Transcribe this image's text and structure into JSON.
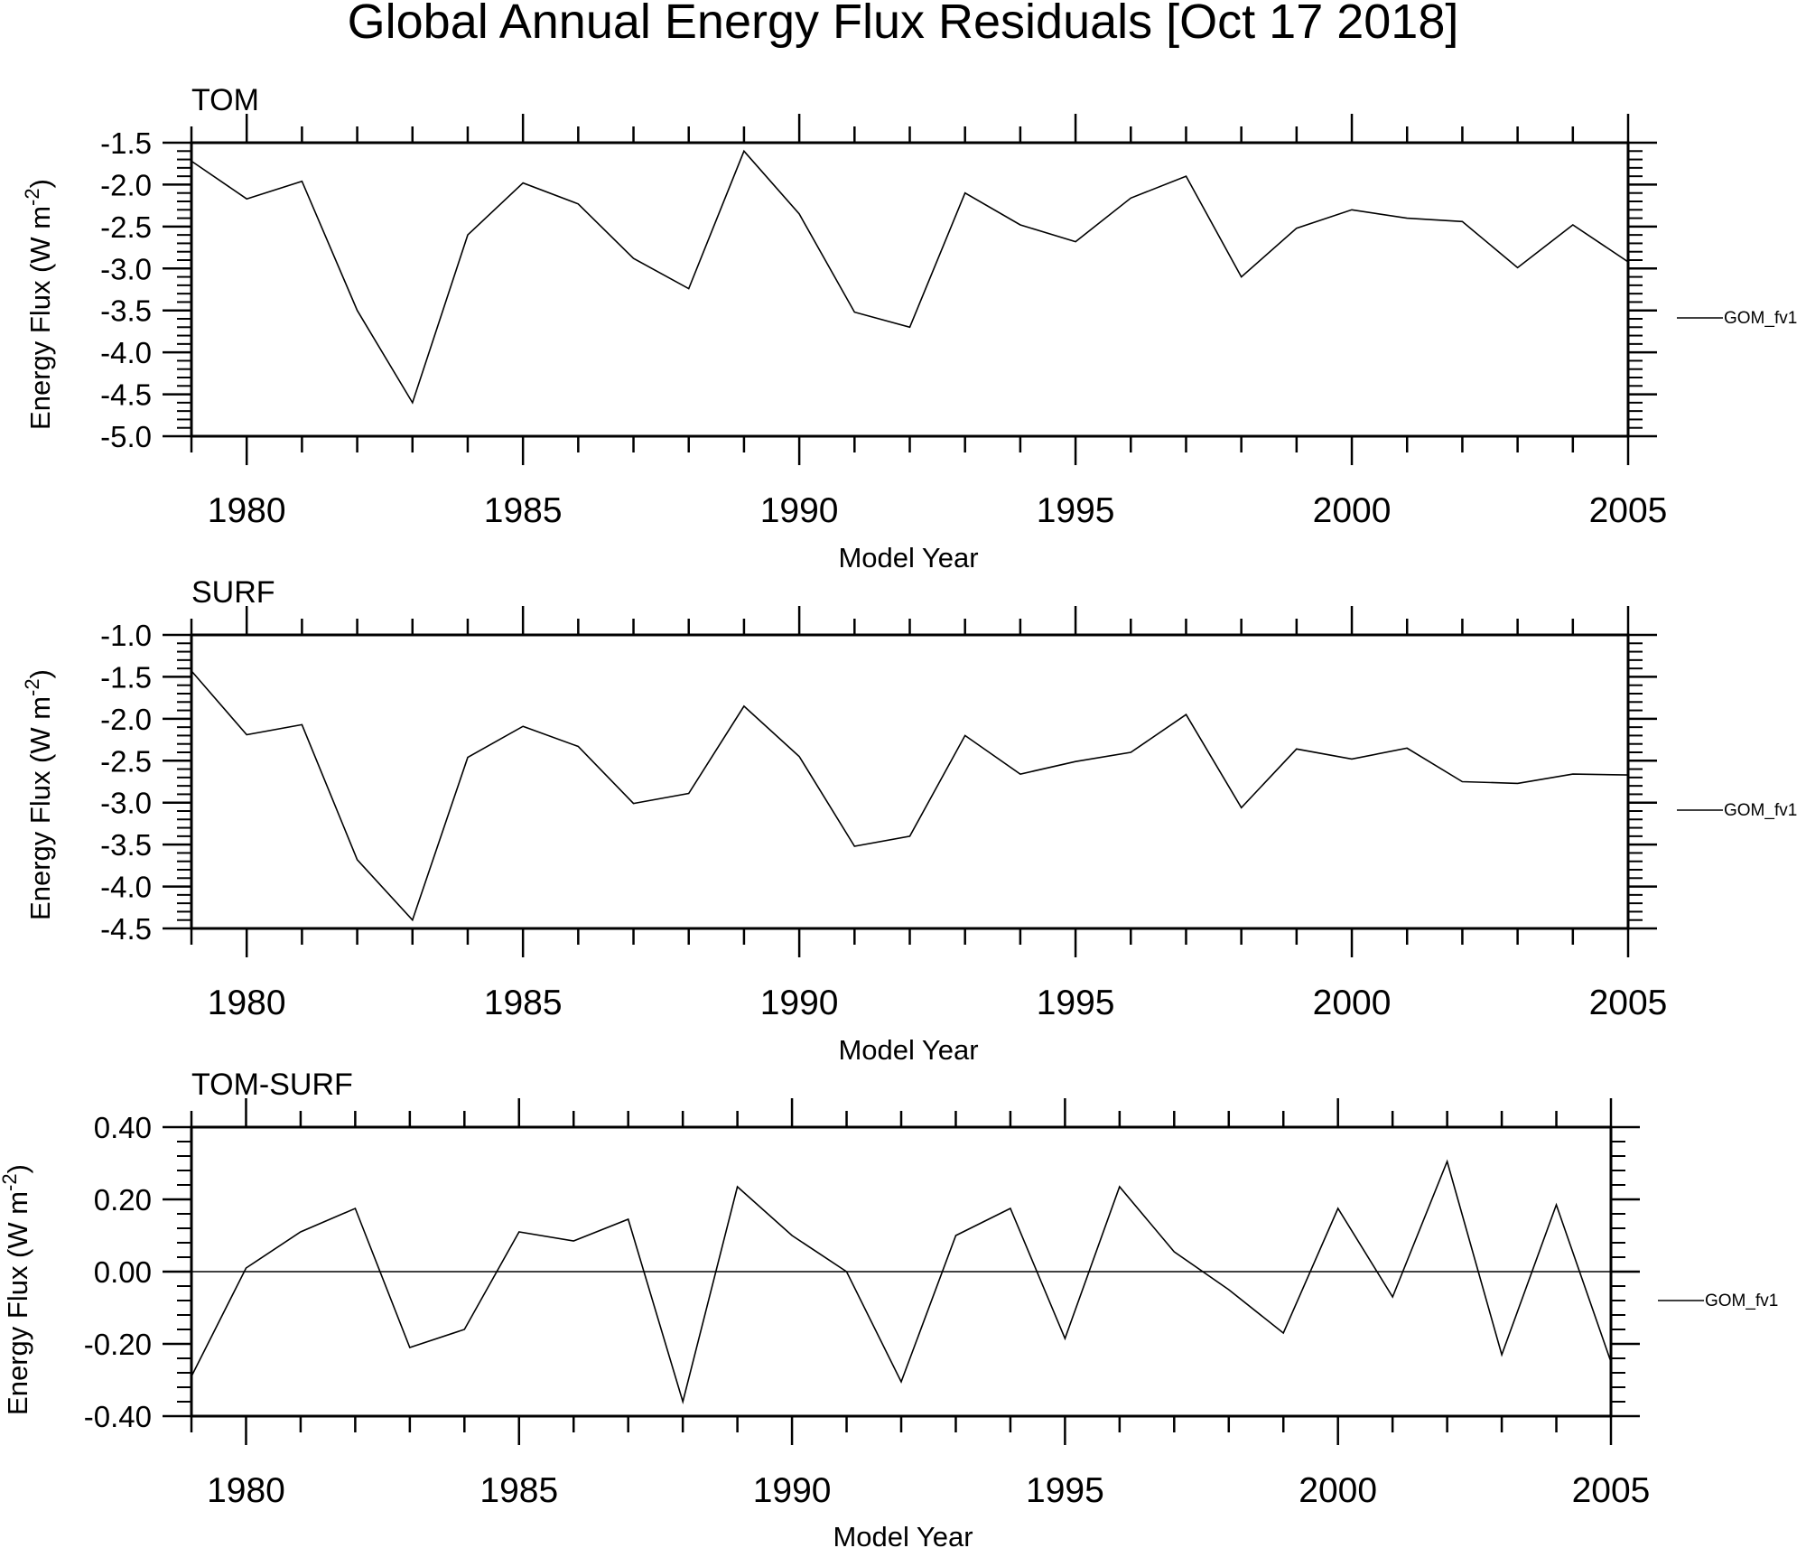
{
  "title": "Global Annual Energy Flux Residuals [Oct 17 2018]",
  "colors": {
    "line": "#000000",
    "background": "#ffffff"
  },
  "chart_data": [
    {
      "type": "line",
      "panel": "TOM",
      "xlabel": "Model Year",
      "ylabel": "Energy Flux (W m-2)",
      "ylabel_main": "Energy Flux (W m",
      "ylabel_sup": "-2",
      "ylabel_close": ")",
      "xlim": [
        1979,
        2005
      ],
      "ylim": [
        -5.0,
        -1.5
      ],
      "yticks": [
        -5.0,
        -4.5,
        -4.0,
        -3.5,
        -3.0,
        -2.5,
        -2.0,
        -1.5
      ],
      "ytick_labels": [
        "-5.0",
        "-4.5",
        "-4.0",
        "-3.5",
        "-3.0",
        "-2.5",
        "-2.0",
        "-1.5"
      ],
      "xticks": [
        1980,
        1985,
        1990,
        1995,
        2000,
        2005
      ],
      "xtick_labels": [
        "1980",
        "1985",
        "1990",
        "1995",
        "2000",
        "2005"
      ],
      "legend": "GOM_fv1",
      "zero_line": false,
      "series": [
        {
          "name": "GOM_fv1",
          "x": [
            1979,
            1980,
            1981,
            1982,
            1983,
            1984,
            1985,
            1986,
            1987,
            1988,
            1989,
            1990,
            1991,
            1992,
            1993,
            1994,
            1995,
            1996,
            1997,
            1998,
            1999,
            2000,
            2001,
            2002,
            2003,
            2004,
            2005
          ],
          "values": [
            -1.72,
            -2.17,
            -1.96,
            -3.5,
            -4.6,
            -2.6,
            -1.98,
            -2.23,
            -2.88,
            -3.24,
            -1.6,
            -2.35,
            -3.52,
            -3.7,
            -2.1,
            -2.48,
            -2.68,
            -2.16,
            -1.9,
            -3.1,
            -2.52,
            -2.3,
            -2.4,
            -2.44,
            -2.99,
            -2.48,
            -2.92
          ]
        }
      ]
    },
    {
      "type": "line",
      "panel": "SURF",
      "xlabel": "Model Year",
      "ylabel": "Energy Flux (W m-2)",
      "ylabel_main": "Energy Flux (W m",
      "ylabel_sup": "-2",
      "ylabel_close": ")",
      "xlim": [
        1979,
        2005
      ],
      "ylim": [
        -4.5,
        -1.0
      ],
      "yticks": [
        -4.5,
        -4.0,
        -3.5,
        -3.0,
        -2.5,
        -2.0,
        -1.5,
        -1.0
      ],
      "ytick_labels": [
        "-4.5",
        "-4.0",
        "-3.5",
        "-3.0",
        "-2.5",
        "-2.0",
        "-1.5",
        "-1.0"
      ],
      "xticks": [
        1980,
        1985,
        1990,
        1995,
        2000,
        2005
      ],
      "xtick_labels": [
        "1980",
        "1985",
        "1990",
        "1995",
        "2000",
        "2005"
      ],
      "legend": "GOM_fv1",
      "zero_line": false,
      "series": [
        {
          "name": "GOM_fv1",
          "x": [
            1979,
            1980,
            1981,
            1982,
            1983,
            1984,
            1985,
            1986,
            1987,
            1988,
            1989,
            1990,
            1991,
            1992,
            1993,
            1994,
            1995,
            1996,
            1997,
            1998,
            1999,
            2000,
            2001,
            2002,
            2003,
            2004,
            2005
          ],
          "values": [
            -1.43,
            -2.19,
            -2.07,
            -3.68,
            -4.4,
            -2.46,
            -2.09,
            -2.33,
            -3.01,
            -2.89,
            -1.85,
            -2.45,
            -3.52,
            -3.4,
            -2.2,
            -2.66,
            -2.51,
            -2.4,
            -1.95,
            -3.06,
            -2.36,
            -2.48,
            -2.35,
            -2.75,
            -2.77,
            -2.66,
            -2.67
          ]
        }
      ]
    },
    {
      "type": "line",
      "panel": "TOM-SURF",
      "xlabel": "Model Year",
      "ylabel": "Energy Flux (W m-2)",
      "ylabel_main": "Energy Flux (W m",
      "ylabel_sup": "-2",
      "ylabel_close": ")",
      "xlim": [
        1979,
        2005
      ],
      "ylim": [
        -0.4,
        0.4
      ],
      "yticks": [
        -0.4,
        -0.2,
        0.0,
        0.2,
        0.4
      ],
      "ytick_labels": [
        "-0.40",
        "-0.20",
        "0.00",
        "0.20",
        "0.40"
      ],
      "xticks": [
        1980,
        1985,
        1990,
        1995,
        2000,
        2005
      ],
      "xtick_labels": [
        "1980",
        "1985",
        "1990",
        "1995",
        "2000",
        "2005"
      ],
      "legend": "GOM_fv1",
      "zero_line": true,
      "series": [
        {
          "name": "GOM_fv1",
          "x": [
            1979,
            1980,
            1981,
            1982,
            1983,
            1984,
            1985,
            1986,
            1987,
            1988,
            1989,
            1990,
            1991,
            1992,
            1993,
            1994,
            1995,
            1996,
            1997,
            1998,
            1999,
            2000,
            2001,
            2002,
            2003,
            2004,
            2005
          ],
          "values": [
            -0.29,
            0.01,
            0.11,
            0.175,
            -0.21,
            -0.16,
            0.11,
            0.085,
            0.145,
            -0.36,
            0.235,
            0.1,
            0.0,
            -0.305,
            0.1,
            0.175,
            -0.185,
            0.235,
            0.055,
            -0.05,
            -0.17,
            0.175,
            -0.07,
            0.305,
            -0.23,
            0.185,
            -0.25
          ]
        }
      ]
    }
  ]
}
